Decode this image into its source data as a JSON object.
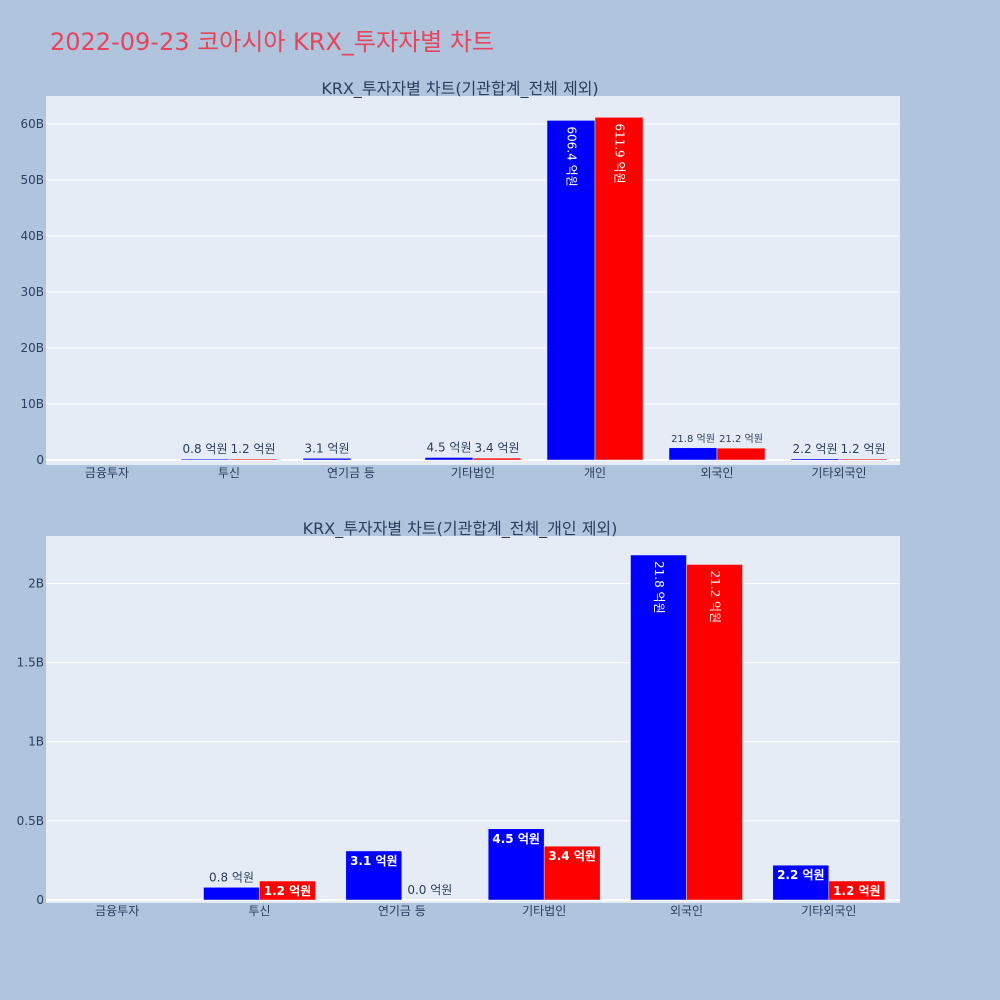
{
  "title": "2022-09-23 코아시아 KRX_투자자별 차트",
  "colors": {
    "buy": "#0000ff",
    "sell": "#ff0000",
    "title": "#e8445a",
    "plot_bg": "#e5ecf6",
    "page_bg": "#b0c4de"
  },
  "chart_data": [
    {
      "type": "bar",
      "title": "KRX_투자자별 차트(기관합계_전체 제외)",
      "categories": [
        "금융투자",
        "투신",
        "연기금 등",
        "기타법인",
        "개인",
        "외국인",
        "기타외국인"
      ],
      "ylim": [
        0,
        65
      ],
      "y_unit": "B",
      "yticks": [
        0,
        10,
        20,
        30,
        40,
        50,
        60
      ],
      "ytick_labels": [
        "0",
        "10B",
        "20B",
        "30B",
        "40B",
        "50B",
        "60B"
      ],
      "grid": true,
      "series": [
        {
          "color": "#0000ff",
          "values": [
            0,
            0.08,
            0.31,
            0.45,
            60.64,
            2.18,
            0.22
          ],
          "labels": [
            "",
            "0.8 억원",
            "3.1 억원",
            "4.5 억원",
            "606.4 억원",
            "21.8 억원",
            "2.2 억원"
          ]
        },
        {
          "color": "#ff0000",
          "values": [
            0,
            0.12,
            0,
            0.34,
            61.19,
            2.12,
            0.12
          ],
          "labels": [
            "",
            "1.2 억원",
            "",
            "3.4 억원",
            "611.9 억원",
            "21.2 억원",
            "1.2 억원"
          ]
        }
      ]
    },
    {
      "type": "bar",
      "title": "KRX_투자자별 차트(기관합계_전체_개인 제외)",
      "categories": [
        "금융투자",
        "투신",
        "연기금 등",
        "기타법인",
        "외국인",
        "기타외국인"
      ],
      "ylim": [
        0,
        2.3
      ],
      "y_unit": "B",
      "yticks": [
        0,
        0.5,
        1,
        1.5,
        2
      ],
      "ytick_labels": [
        "0",
        "0.5B",
        "1B",
        "1.5B",
        "2B"
      ],
      "grid": true,
      "series": [
        {
          "color": "#0000ff",
          "values": [
            0,
            0.08,
            0.31,
            0.45,
            2.18,
            0.22
          ],
          "labels": [
            "",
            "0.8 억원",
            "3.1 억원",
            "4.5 억원",
            "21.8 억원",
            "2.2 억원"
          ]
        },
        {
          "color": "#ff0000",
          "values": [
            0,
            0.12,
            0.0,
            0.34,
            2.12,
            0.12
          ],
          "labels": [
            "",
            "1.2 억원",
            "0.0 억원",
            "3.4 억원",
            "21.2 억원",
            "1.2 억원"
          ]
        }
      ]
    }
  ]
}
